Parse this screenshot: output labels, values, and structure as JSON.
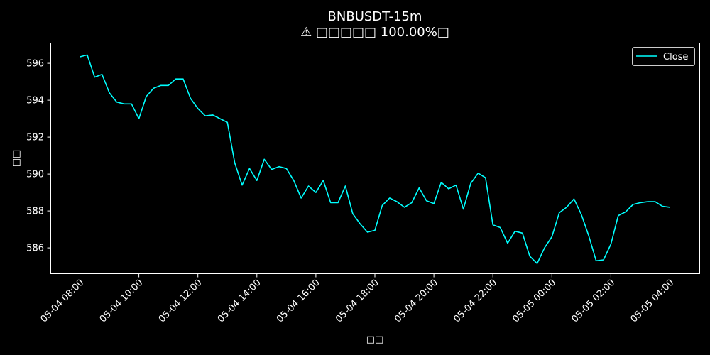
{
  "chart_data": {
    "type": "line",
    "title": "BNBUSDT-15m",
    "subtitle": "⚠ □□□□□ 100.00%□",
    "xlabel": "□□",
    "ylabel": "□□",
    "ylim": [
      584.6,
      597.1
    ],
    "yticks": [
      586,
      588,
      590,
      592,
      594,
      596
    ],
    "x_tick_labels": [
      "05-04 08:00",
      "05-04 10:00",
      "05-04 12:00",
      "05-04 14:00",
      "05-04 16:00",
      "05-04 18:00",
      "05-04 20:00",
      "05-04 22:00",
      "05-05 00:00",
      "05-05 02:00",
      "05-05 04:00"
    ],
    "x_start": "05-04 08:00",
    "x_end": "05-05 04:00",
    "interval": "15m",
    "grid": false,
    "legend_position": "top-right",
    "series": [
      {
        "name": "Close",
        "color": "#00ffff",
        "values": [
          596.35,
          596.45,
          595.25,
          595.4,
          594.4,
          593.9,
          593.8,
          593.8,
          593.0,
          594.2,
          594.65,
          594.8,
          594.8,
          595.15,
          595.15,
          594.1,
          593.55,
          593.15,
          593.2,
          593.0,
          592.8,
          590.6,
          589.4,
          590.3,
          589.65,
          590.8,
          590.25,
          590.4,
          590.3,
          589.65,
          588.7,
          589.35,
          589.0,
          589.65,
          588.45,
          588.45,
          589.35,
          587.85,
          587.3,
          586.85,
          586.95,
          588.3,
          588.7,
          588.5,
          588.2,
          588.45,
          589.25,
          588.55,
          588.4,
          589.55,
          589.2,
          589.4,
          588.1,
          589.5,
          590.05,
          589.8,
          587.25,
          587.1,
          586.25,
          586.9,
          586.8,
          585.55,
          585.15,
          586.0,
          586.6,
          587.9,
          588.2,
          588.65,
          587.8,
          586.65,
          585.3,
          585.35,
          586.2,
          587.75,
          587.95,
          588.35,
          588.45,
          588.5,
          588.5,
          588.25,
          588.2
        ]
      }
    ]
  }
}
